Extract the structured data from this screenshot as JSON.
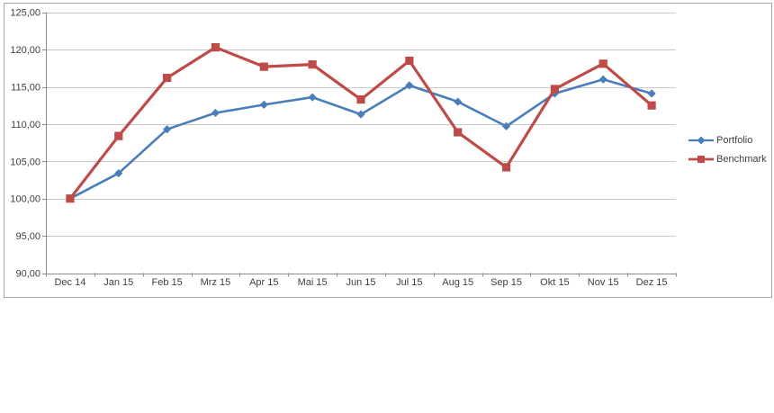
{
  "chart_data": {
    "type": "line",
    "title": "",
    "categories": [
      "Dec 14",
      "Jan 15",
      "Feb 15",
      "Mrz 15",
      "Apr 15",
      "Mai 15",
      "Jun 15",
      "Jul 15",
      "Aug 15",
      "Sep 15",
      "Okt 15",
      "Nov 15",
      "Dez 15"
    ],
    "series": [
      {
        "name": "Portfolio",
        "color": "#4A7EBB",
        "marker": "diamond",
        "values": [
          100.0,
          103.4,
          109.3,
          111.5,
          112.6,
          113.6,
          111.3,
          115.2,
          113.0,
          109.7,
          114.1,
          116.0,
          114.1
        ]
      },
      {
        "name": "Benchmark",
        "color": "#BE4B48",
        "marker": "square",
        "values": [
          100.0,
          108.4,
          116.2,
          120.3,
          117.7,
          118.0,
          113.3,
          118.5,
          108.9,
          104.2,
          114.7,
          118.1,
          112.5
        ]
      }
    ],
    "y_axis": {
      "min": 90,
      "max": 125,
      "step": 5,
      "tick_labels": [
        "125,00",
        "120,00",
        "115,00",
        "110,00",
        "105,00",
        "100,00",
        "95,00",
        "90,00"
      ]
    },
    "ylim": [
      90,
      125
    ],
    "grid": true,
    "legend_position": "right",
    "colors": {
      "portfolio": "#4A7EBB",
      "benchmark": "#BE4B48",
      "gridline": "#C8C8C8",
      "axis": "#8C8C8C",
      "text": "#3F3F3F",
      "frame": "#A6A6A6",
      "background": "#FFFFFF"
    }
  }
}
